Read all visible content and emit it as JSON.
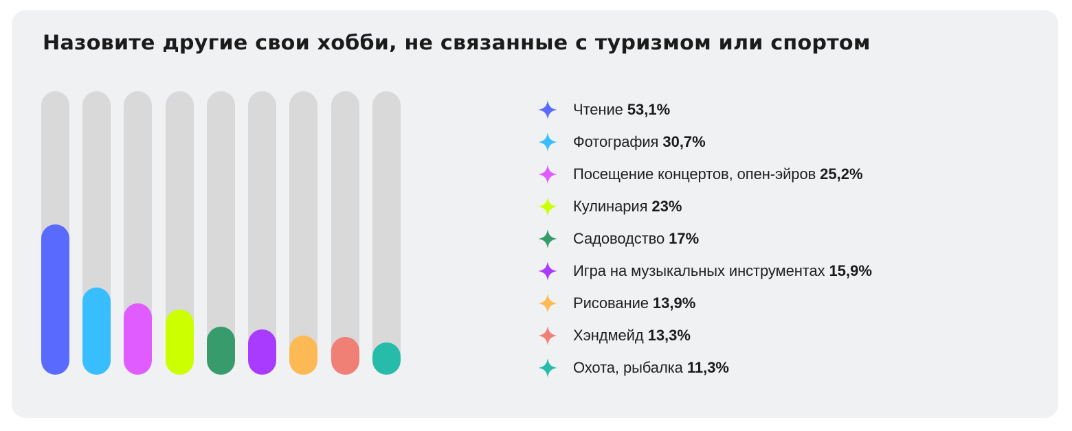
{
  "title": "Назовите другие свои хобби, не связанные с туризмом или спортом",
  "legend": [
    {
      "label": "Чтение",
      "value": "53,1%",
      "color": "#596bff",
      "icon": "sparkle-star-icon"
    },
    {
      "label": "Фотография",
      "value": "30,7%",
      "color": "#38bdff",
      "icon": "sparkle-star-icon"
    },
    {
      "label": "Посещение концертов, опен-эйров",
      "value": "25,2%",
      "color": "#e15cff",
      "icon": "sparkle-star-icon"
    },
    {
      "label": "Кулинария",
      "value": "23%",
      "color": "#ccff00",
      "icon": "sparkle-star-icon"
    },
    {
      "label": "Садоводство",
      "value": "17%",
      "color": "#389b6b",
      "icon": "sparkle-star-icon"
    },
    {
      "label": "Игра на музыкальных инструментах",
      "value": "15,9%",
      "color": "#a93bff",
      "icon": "sparkle-star-icon"
    },
    {
      "label": "Рисование",
      "value": "13,9%",
      "color": "#fcb954",
      "icon": "sparkle-star-icon"
    },
    {
      "label": "Хэндмейд",
      "value": "13,3%",
      "color": "#f07f75",
      "icon": "sparkle-star-icon"
    },
    {
      "label": "Охота, рыбалка",
      "value": "11,3%",
      "color": "#27bcaa",
      "icon": "sparkle-star-icon"
    }
  ],
  "chart_data": {
    "type": "bar",
    "title": "Назовите другие свои хобби, не связанные с туризмом или спортом",
    "xlabel": "",
    "ylabel": "",
    "categories": [
      "Чтение",
      "Фотография",
      "Посещение концертов, опен-эйров",
      "Кулинария",
      "Садоводство",
      "Игра на музыкальных инструментах",
      "Рисование",
      "Хэндмейд",
      "Охота, рыбалка"
    ],
    "values": [
      53.1,
      30.7,
      25.2,
      23,
      17,
      15.9,
      13.9,
      13.3,
      11.3
    ],
    "unit": "%",
    "colors": [
      "#596bff",
      "#38bdff",
      "#e15cff",
      "#ccff00",
      "#389b6b",
      "#a93bff",
      "#fcb954",
      "#f07f75",
      "#27bcaa"
    ],
    "ylim": [
      0,
      100
    ],
    "grid": false,
    "legend_position": "right",
    "track_color": "#d9d9d9"
  }
}
